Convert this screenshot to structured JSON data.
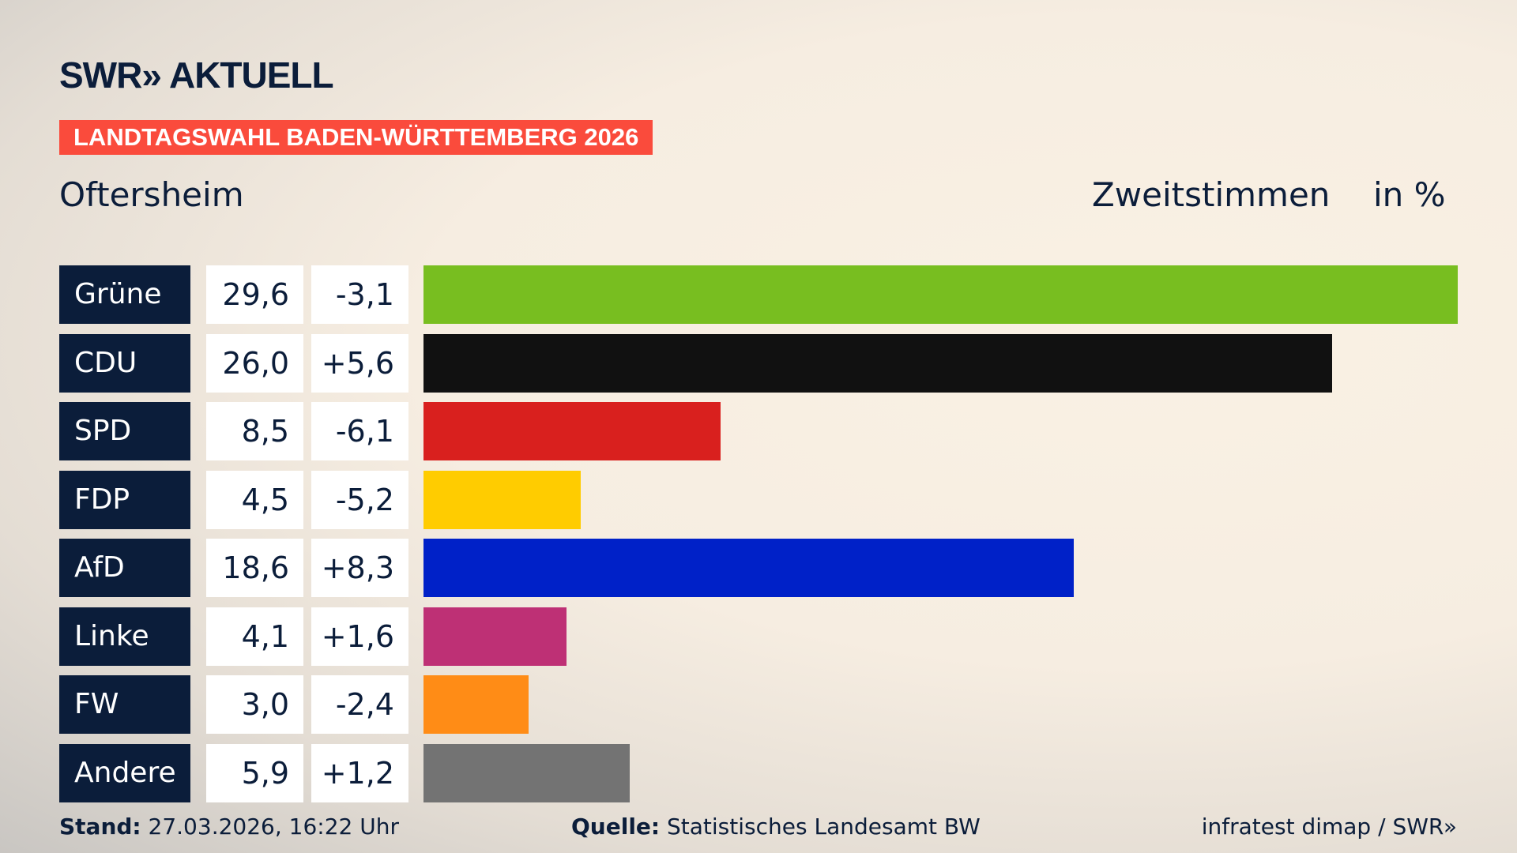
{
  "header": {
    "logo": "SWR» AKTUELL",
    "banner": "LANDTAGSWAHL BADEN-WÜRTTEMBERG 2026",
    "place": "Oftersheim",
    "measure": "Zweitstimmen",
    "unit": "in %"
  },
  "chart_data": {
    "type": "bar",
    "orientation": "horizontal",
    "categories": [
      "Grüne",
      "CDU",
      "SPD",
      "FDP",
      "AfD",
      "Linke",
      "FW",
      "Andere"
    ],
    "values": [
      29.6,
      26.0,
      8.5,
      4.5,
      18.6,
      4.1,
      3.0,
      5.9
    ],
    "value_labels": [
      "29,6",
      "26,0",
      "8,5",
      "4,5",
      "18,6",
      "4,1",
      "3,0",
      "5,9"
    ],
    "diff_labels": [
      "-3,1",
      "+5,6",
      "-6,1",
      "-5,2",
      "+8,3",
      "+1,6",
      "-2,4",
      "+1,2"
    ],
    "colors": [
      "#78be20",
      "#111111",
      "#d9201e",
      "#ffcc00",
      "#0021c8",
      "#be3075",
      "#ff8c16",
      "#737373"
    ]
  },
  "footer": {
    "stand_label": "Stand:",
    "stand_value": "27.03.2026, 16:22 Uhr",
    "source_label": "Quelle:",
    "source_value": "Statistisches Landesamt BW",
    "credit": "infratest dimap / SWR»"
  }
}
